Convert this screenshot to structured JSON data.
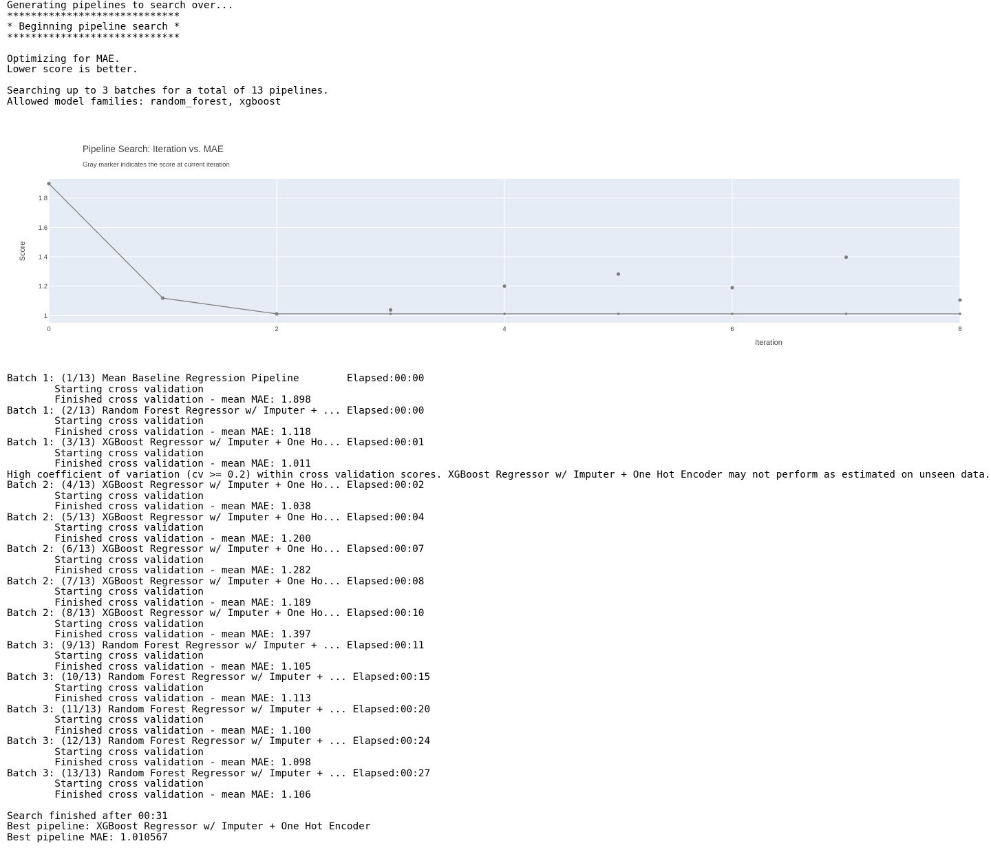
{
  "log_top": [
    "Generating pipelines to search over...",
    "*****************************",
    "* Beginning pipeline search *",
    "*****************************",
    "",
    "Optimizing for MAE.",
    "Lower score is better.",
    "",
    "Searching up to 3 batches for a total of 13 pipelines.",
    "Allowed model families: random_forest, xgboost"
  ],
  "log_bottom": [
    "Batch 1: (1/13) Mean Baseline Regression Pipeline        Elapsed:00:00",
    "        Starting cross validation",
    "        Finished cross validation - mean MAE: 1.898",
    "Batch 1: (2/13) Random Forest Regressor w/ Imputer + ... Elapsed:00:00",
    "        Starting cross validation",
    "        Finished cross validation - mean MAE: 1.118",
    "Batch 1: (3/13) XGBoost Regressor w/ Imputer + One Ho... Elapsed:00:01",
    "        Starting cross validation",
    "        Finished cross validation - mean MAE: 1.011",
    "High coefficient of variation (cv >= 0.2) within cross validation scores. XGBoost Regressor w/ Imputer + One Hot Encoder may not perform as estimated on unseen data.",
    "Batch 2: (4/13) XGBoost Regressor w/ Imputer + One Ho... Elapsed:00:02",
    "        Starting cross validation",
    "        Finished cross validation - mean MAE: 1.038",
    "Batch 2: (5/13) XGBoost Regressor w/ Imputer + One Ho... Elapsed:00:04",
    "        Starting cross validation",
    "        Finished cross validation - mean MAE: 1.200",
    "Batch 2: (6/13) XGBoost Regressor w/ Imputer + One Ho... Elapsed:00:07",
    "        Starting cross validation",
    "        Finished cross validation - mean MAE: 1.282",
    "Batch 2: (7/13) XGBoost Regressor w/ Imputer + One Ho... Elapsed:00:08",
    "        Starting cross validation",
    "        Finished cross validation - mean MAE: 1.189",
    "Batch 2: (8/13) XGBoost Regressor w/ Imputer + One Ho... Elapsed:00:10",
    "        Starting cross validation",
    "        Finished cross validation - mean MAE: 1.397",
    "Batch 3: (9/13) Random Forest Regressor w/ Imputer + ... Elapsed:00:11",
    "        Starting cross validation",
    "        Finished cross validation - mean MAE: 1.105",
    "Batch 3: (10/13) Random Forest Regressor w/ Imputer + ... Elapsed:00:15",
    "        Starting cross validation",
    "        Finished cross validation - mean MAE: 1.113",
    "Batch 3: (11/13) Random Forest Regressor w/ Imputer + ... Elapsed:00:20",
    "        Starting cross validation",
    "        Finished cross validation - mean MAE: 1.100",
    "Batch 3: (12/13) Random Forest Regressor w/ Imputer + ... Elapsed:00:24",
    "        Starting cross validation",
    "        Finished cross validation - mean MAE: 1.098",
    "Batch 3: (13/13) Random Forest Regressor w/ Imputer + ... Elapsed:00:27",
    "        Starting cross validation",
    "        Finished cross validation - mean MAE: 1.106",
    "",
    "Search finished after 00:31",
    "Best pipeline: XGBoost Regressor w/ Imputer + One Hot Encoder",
    "Best pipeline MAE: 1.010567"
  ],
  "chart_data": {
    "type": "line",
    "title": "Pipeline Search: Iteration vs. MAE",
    "subtitle": "Gray marker indicates the score at current iteration",
    "xlabel": "Iteration",
    "ylabel": "Score",
    "xlim": [
      0,
      8
    ],
    "ylim": [
      0.95,
      1.93
    ],
    "x_ticks": [
      0,
      2,
      4,
      6,
      8
    ],
    "y_ticks": [
      1,
      1.2,
      1.4,
      1.6,
      1.8
    ],
    "y_tick_labels": [
      "1",
      "1.2",
      "1.4",
      "1.6",
      "1.8"
    ],
    "grid": true,
    "colors": {
      "plot_bg": "#e5ecf6",
      "line": "#7f7f7f",
      "marker": "#7f7f7f",
      "text": "#444444"
    },
    "series": [
      {
        "kind": "line",
        "x": [
          0,
          1,
          2,
          3,
          4,
          5,
          6,
          7,
          8
        ],
        "values": [
          1.898,
          1.118,
          1.011,
          1.011,
          1.011,
          1.011,
          1.011,
          1.011,
          1.011
        ]
      },
      {
        "kind": "markers",
        "x": [
          0,
          1,
          2,
          3,
          4,
          5,
          6,
          7,
          8
        ],
        "values": [
          1.898,
          1.118,
          1.011,
          1.038,
          1.2,
          1.282,
          1.189,
          1.397,
          1.105
        ]
      }
    ]
  }
}
